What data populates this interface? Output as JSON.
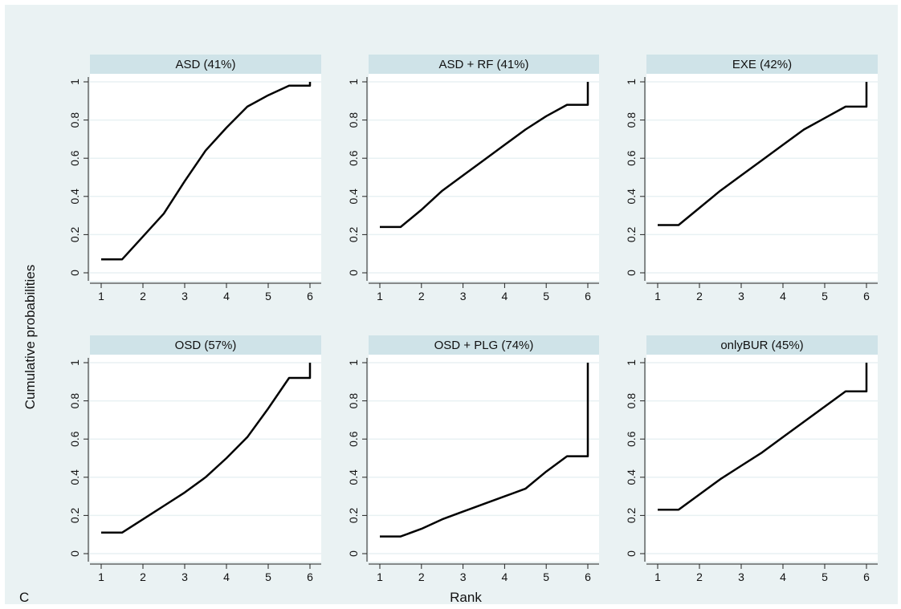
{
  "panel_label": "C",
  "chart_data": [
    {
      "type": "line",
      "title": "ASD (41%)",
      "x": [
        1,
        1.5,
        2,
        2.5,
        3,
        3.5,
        4,
        4.5,
        5,
        5.5,
        6,
        6
      ],
      "y": [
        0.07,
        0.07,
        0.19,
        0.31,
        0.48,
        0.64,
        0.76,
        0.87,
        0.93,
        0.98,
        0.98,
        1.0
      ],
      "xlim": [
        1,
        6
      ],
      "ylim": [
        0,
        1
      ],
      "xticks": [
        "1",
        "2",
        "3",
        "4",
        "5",
        "6"
      ],
      "yticks": [
        "0",
        "0.2",
        "0.4",
        "0.6",
        "0.8",
        "1"
      ],
      "grid": true
    },
    {
      "type": "line",
      "title": "ASD + RF (41%)",
      "x": [
        1,
        1.5,
        2,
        2.5,
        3,
        3.5,
        4,
        4.5,
        5,
        5.5,
        6,
        6
      ],
      "y": [
        0.24,
        0.24,
        0.33,
        0.43,
        0.51,
        0.59,
        0.67,
        0.75,
        0.82,
        0.88,
        0.88,
        1.0
      ],
      "xlim": [
        1,
        6
      ],
      "ylim": [
        0,
        1
      ],
      "xticks": [
        "1",
        "2",
        "3",
        "4",
        "5",
        "6"
      ],
      "yticks": [
        "0",
        "0.2",
        "0.4",
        "0.6",
        "0.8",
        "1"
      ],
      "grid": true
    },
    {
      "type": "line",
      "title": "EXE (42%)",
      "x": [
        1,
        1.5,
        2,
        2.5,
        3,
        3.5,
        4,
        4.5,
        5,
        5.5,
        6,
        6
      ],
      "y": [
        0.25,
        0.25,
        0.34,
        0.43,
        0.51,
        0.59,
        0.67,
        0.75,
        0.81,
        0.87,
        0.87,
        1.0
      ],
      "xlim": [
        1,
        6
      ],
      "ylim": [
        0,
        1
      ],
      "xticks": [
        "1",
        "2",
        "3",
        "4",
        "5",
        "6"
      ],
      "yticks": [
        "0",
        "0.2",
        "0.4",
        "0.6",
        "0.8",
        "1"
      ],
      "grid": true
    },
    {
      "type": "line",
      "title": "OSD (57%)",
      "x": [
        1,
        1.5,
        2,
        2.5,
        3,
        3.5,
        4,
        4.5,
        5,
        5.5,
        6,
        6
      ],
      "y": [
        0.11,
        0.11,
        0.18,
        0.25,
        0.32,
        0.4,
        0.5,
        0.61,
        0.76,
        0.92,
        0.92,
        1.0
      ],
      "xlim": [
        1,
        6
      ],
      "ylim": [
        0,
        1
      ],
      "xticks": [
        "1",
        "2",
        "3",
        "4",
        "5",
        "6"
      ],
      "yticks": [
        "0",
        "0.2",
        "0.4",
        "0.6",
        "0.8",
        "1"
      ],
      "grid": true
    },
    {
      "type": "line",
      "title": "OSD + PLG (74%)",
      "x": [
        1,
        1.5,
        2,
        2.5,
        3,
        3.5,
        4,
        4.5,
        5,
        5.5,
        6,
        6
      ],
      "y": [
        0.09,
        0.09,
        0.13,
        0.18,
        0.22,
        0.26,
        0.3,
        0.34,
        0.43,
        0.51,
        0.51,
        1.0
      ],
      "xlim": [
        1,
        6
      ],
      "ylim": [
        0,
        1
      ],
      "xticks": [
        "1",
        "2",
        "3",
        "4",
        "5",
        "6"
      ],
      "yticks": [
        "0",
        "0.2",
        "0.4",
        "0.6",
        "0.8",
        "1"
      ],
      "grid": true
    },
    {
      "type": "line",
      "title": "onlyBUR (45%)",
      "x": [
        1,
        1.5,
        2,
        2.5,
        3,
        3.5,
        4,
        4.5,
        5,
        5.5,
        6,
        6
      ],
      "y": [
        0.23,
        0.23,
        0.31,
        0.39,
        0.46,
        0.53,
        0.61,
        0.69,
        0.77,
        0.85,
        0.85,
        1.0
      ],
      "xlim": [
        1,
        6
      ],
      "ylim": [
        0,
        1
      ],
      "xticks": [
        "1",
        "2",
        "3",
        "4",
        "5",
        "6"
      ],
      "yticks": [
        "0",
        "0.2",
        "0.4",
        "0.6",
        "0.8",
        "1"
      ],
      "grid": true
    }
  ],
  "xlabel": "Rank",
  "ylabel": "Cumulative probabilities",
  "colors": {
    "background": "#eaf2f3",
    "plot_region": "#ffffff",
    "strip": "#cfe3e8",
    "gridline": "#e8f1f3",
    "line": "#000000"
  }
}
